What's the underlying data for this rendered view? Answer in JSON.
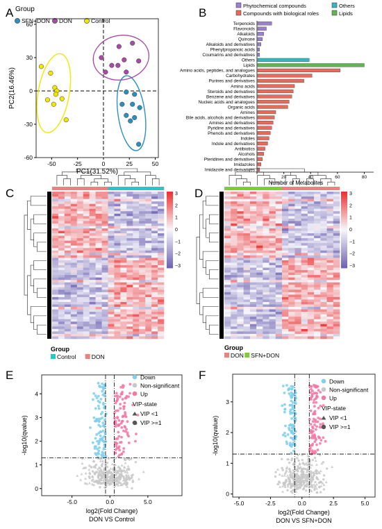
{
  "panel_letters": [
    "A",
    "B",
    "C",
    "D",
    "E",
    "F"
  ],
  "colors": {
    "sfn_don": "#2a8fc1",
    "don": "#a94aa9",
    "control": "#f2e600",
    "phyto": "#9b7fd0",
    "bio": "#e86a5a",
    "others": "#3bb3c2",
    "lipids": "#5cb84c",
    "hm_high": "#ee3333",
    "hm_mid": "#f7f7fb",
    "hm_low": "#6f64b4",
    "heat_control": "#2ec4c6",
    "heat_don": "#f08080",
    "heat_sfn": "#7fcc33",
    "down": "#7fcfee",
    "ns": "#c8c8c8",
    "up": "#f279a6"
  },
  "chart_data": [
    {
      "id": "A",
      "type": "scatter",
      "title": "",
      "legend_title": "Group",
      "legend_position": "top",
      "xlabel": "PC1(31.52%)",
      "ylabel": "PC2(16.46%)",
      "xlim": [
        -65,
        53
      ],
      "ylim": [
        -60,
        65
      ],
      "xticks": [
        -50,
        -25,
        0,
        25,
        50
      ],
      "yticks": [
        -60,
        -30,
        0,
        30,
        60
      ],
      "series": [
        {
          "name": "SFN+DON",
          "color_key": "sfn_don",
          "points": [
            [
              22,
              -1
            ],
            [
              30,
              -3
            ],
            [
              18,
              -12
            ],
            [
              28,
              -12
            ],
            [
              35,
              -15
            ],
            [
              22,
              -22
            ],
            [
              30,
              -24
            ],
            [
              26,
              -27
            ],
            [
              34,
              -48
            ]
          ],
          "ellipse": {
            "cx": 27,
            "cy": -20,
            "rx": 13,
            "ry": 34,
            "angle": -8
          }
        },
        {
          "name": "DON",
          "color_key": "don",
          "points": [
            [
              15,
              40
            ],
            [
              28,
              43
            ],
            [
              -2,
              30
            ],
            [
              20,
              28
            ],
            [
              34,
              27
            ],
            [
              8,
              23
            ],
            [
              14,
              23
            ],
            [
              2,
              17
            ],
            [
              22,
              17
            ]
          ],
          "ellipse": {
            "cx": 17,
            "cy": 30,
            "rx": 27,
            "ry": 20,
            "angle": -10
          }
        },
        {
          "name": "Control",
          "color_key": "control",
          "points": [
            [
              -60,
              22
            ],
            [
              -51,
              16
            ],
            [
              -47,
              3
            ],
            [
              -45,
              0
            ],
            [
              -46,
              -3
            ],
            [
              -40,
              -7
            ],
            [
              -54,
              -8
            ],
            [
              -48,
              -12
            ],
            [
              -36,
              -26
            ]
          ],
          "ellipse": {
            "cx": -48,
            "cy": -2,
            "rx": 15,
            "ry": 36,
            "angle": 10
          }
        }
      ]
    },
    {
      "id": "B",
      "type": "bar",
      "orientation": "horizontal",
      "xlabel": "Number of Metabolites",
      "xlim": [
        0,
        87
      ],
      "xticks": [
        0,
        20,
        40,
        60,
        80
      ],
      "legend_position": "top",
      "legend": [
        {
          "label": "Phytochemical compounds",
          "color_key": "phyto"
        },
        {
          "label": "Compounds with biological roles",
          "color_key": "bio"
        },
        {
          "label": "Others",
          "color_key": "others"
        },
        {
          "label": "Lipids",
          "color_key": "lipids"
        }
      ],
      "categories": [
        "Terpenoids",
        "Flavonoids",
        "Alkaloids",
        "Quinone",
        "Alkaloids and derivatives",
        "Phenylpropanoic acids",
        "Coumarins and derivatives",
        "Others",
        "Lipids",
        "Amino acids, peptides, and analogues",
        "Carbohydrates",
        "Purines and derivatives",
        "Amino acids",
        "Steroids and derivatives",
        "Benzene and derivatives",
        "Nucleic acids and analogues",
        "Organic acids",
        "Amines",
        "Bile acids, alcohols and derivatives",
        "Amines and derivatives",
        "Pyridine and derivatives",
        "Phenols and derivatives",
        "Indoles",
        "Indole and derivatives",
        "Antibiotics",
        "Alcohols",
        "Pteridines and derivatives",
        "Imidazoles",
        "Imidazole and derivatives"
      ],
      "values": [
        11,
        7,
        5,
        4,
        3,
        2,
        2,
        39,
        80,
        62,
        41,
        35,
        28,
        27,
        26,
        24,
        23,
        14,
        13,
        12,
        11,
        10,
        9,
        8,
        6,
        5,
        4,
        3,
        2
      ],
      "groups": [
        "phyto",
        "phyto",
        "phyto",
        "phyto",
        "phyto",
        "phyto",
        "phyto",
        "others",
        "lipids",
        "bio",
        "bio",
        "bio",
        "bio",
        "bio",
        "bio",
        "bio",
        "bio",
        "bio",
        "bio",
        "bio",
        "bio",
        "bio",
        "bio",
        "bio",
        "bio",
        "bio",
        "bio",
        "bio",
        "bio"
      ]
    },
    {
      "id": "C",
      "type": "heatmap",
      "legend_title": "Group",
      "legend": [
        {
          "label": "Control",
          "color_key": "heat_control"
        },
        {
          "label": "DON",
          "color_key": "heat_don"
        }
      ],
      "colorbar_ticks": [
        "3",
        "2",
        "1",
        "0",
        "−1",
        "−2",
        "−3"
      ],
      "column_groups": [
        "DON",
        "DON",
        "DON",
        "DON",
        "DON",
        "DON",
        "DON",
        "DON",
        "DON",
        "Control",
        "Control",
        "Control",
        "Control",
        "Control",
        "Control",
        "Control",
        "Control",
        "Control"
      ]
    },
    {
      "id": "D",
      "type": "heatmap",
      "legend_title": "Group",
      "legend": [
        {
          "label": "DON",
          "color_key": "heat_don"
        },
        {
          "label": "SFN+DON",
          "color_key": "heat_sfn"
        }
      ],
      "colorbar_ticks": [
        "3",
        "2",
        "1",
        "0",
        "−1",
        "−2",
        "−3"
      ],
      "column_groups": [
        "SFN+DON",
        "SFN+DON",
        "SFN+DON",
        "SFN+DON",
        "SFN+DON",
        "SFN+DON",
        "SFN+DON",
        "SFN+DON",
        "SFN+DON",
        "DON",
        "DON",
        "DON",
        "DON",
        "DON",
        "DON",
        "DON",
        "DON",
        "DON"
      ]
    },
    {
      "id": "E",
      "type": "scatter",
      "subtitle": "DON VS Control",
      "xlabel": "log2(Fold Change)",
      "ylabel": "-log10(qvalue)",
      "xlim": [
        -9,
        9.5
      ],
      "ylim": [
        -0.3,
        4.8
      ],
      "xticks": [
        -5,
        0,
        5
      ],
      "xtick_labels": [
        "-5.0",
        "0.0",
        "5.0"
      ],
      "yticks": [
        0,
        1,
        2,
        3,
        4
      ],
      "vlines": [
        -0.58,
        0.58
      ],
      "hline": 1.3,
      "legend": {
        "entries": [
          "Down",
          "Non-significant",
          "Up"
        ],
        "vip_title": "VIP-state",
        "vip": [
          "VIP <1",
          "VIP >=1"
        ]
      }
    },
    {
      "id": "F",
      "type": "scatter",
      "subtitle": "DON VS SFN+DON",
      "xlabel": "log2(Fold Change)",
      "ylabel": "-log10(qvalue)",
      "xlim": [
        -5.5,
        5.8
      ],
      "ylim": [
        -0.1,
        3.9
      ],
      "xticks": [
        -5,
        -2.5,
        0,
        2.5,
        5
      ],
      "xtick_labels": [
        "-5.0",
        "-2.5",
        "0.0",
        "2.5",
        "5.0"
      ],
      "yticks": [
        0,
        1,
        2,
        3
      ],
      "vlines": [
        -0.58,
        0.58
      ],
      "hline": 1.3,
      "legend": {
        "entries": [
          "Down",
          "Non-significant",
          "Up"
        ],
        "vip_title": "VIP-state",
        "vip": [
          "VIP <1",
          "VIP >=1"
        ]
      }
    }
  ]
}
